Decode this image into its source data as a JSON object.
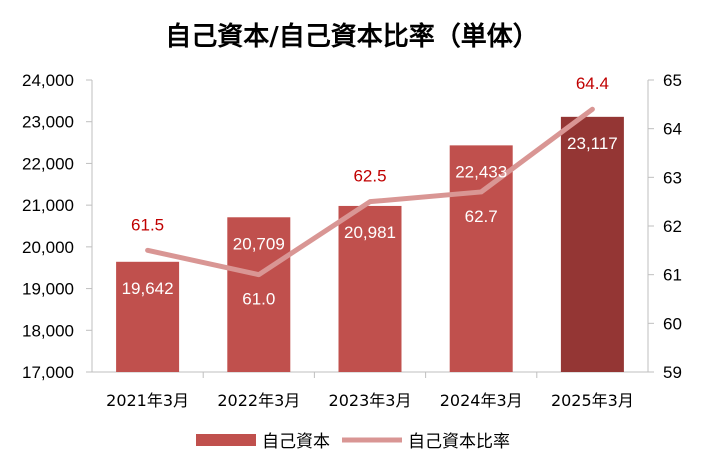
{
  "chart_data": {
    "type": "bar",
    "title": "自己資本/自己資本比率（単体）",
    "categories": [
      "2021年3月",
      "2022年3月",
      "2023年3月",
      "2024年3月",
      "2025年3月"
    ],
    "series": [
      {
        "name": "自己資本",
        "type": "bar",
        "axis": "left",
        "values": [
          19642,
          20709,
          20981,
          22433,
          23117
        ],
        "value_labels": [
          "19,642",
          "20,709",
          "20,981",
          "22,433",
          "23,117"
        ]
      },
      {
        "name": "自己資本比率",
        "type": "line",
        "axis": "right",
        "values": [
          61.5,
          61.0,
          62.5,
          62.7,
          64.4
        ],
        "value_labels": [
          "61.5",
          "61.0",
          "62.5",
          "62.7",
          "64.4"
        ]
      }
    ],
    "y_left": {
      "min": 17000,
      "max": 24000,
      "step": 1000,
      "tick_labels": [
        "17,000",
        "18,000",
        "19,000",
        "20,000",
        "21,000",
        "22,000",
        "23,000",
        "24,000"
      ]
    },
    "y_right": {
      "min": 59,
      "max": 65,
      "step": 1,
      "tick_labels": [
        "59",
        "60",
        "61",
        "62",
        "63",
        "64",
        "65"
      ]
    },
    "grid": false,
    "legend": "bottom",
    "colors": {
      "bar": "#c0504d",
      "bar_highlight": "#943634",
      "line": "#d99694",
      "line_label_dark": "#c00000",
      "line_label_light": "#ffffff",
      "axis": "#bfbfbf"
    }
  }
}
